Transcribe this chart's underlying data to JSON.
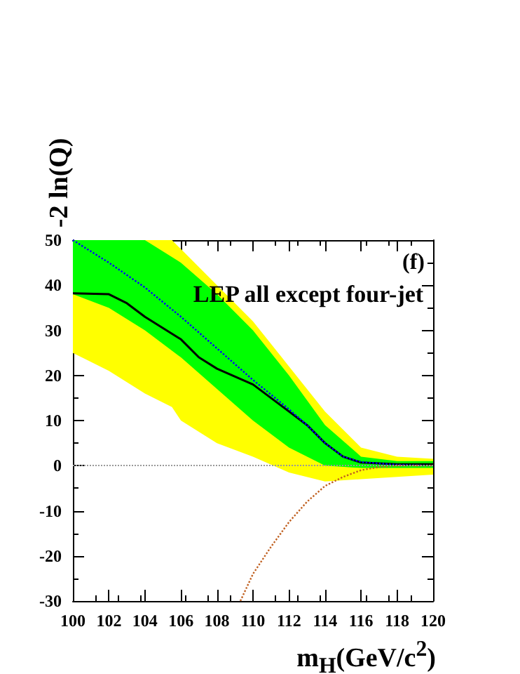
{
  "chart_data": {
    "type": "line",
    "xlabel": "m$_{H}$(GeV/c$^{2}$)",
    "ylabel": "-2 ln(Q)",
    "annotations": [
      "(f)",
      "LEP all except four-jet"
    ],
    "xlim": [
      100,
      120
    ],
    "xticks": [
      100,
      102,
      104,
      106,
      108,
      110,
      112,
      114,
      116,
      118,
      120
    ],
    "ylim": [
      -30,
      50
    ],
    "yticks": [
      -30,
      -20,
      -10,
      0,
      10,
      20,
      30,
      40,
      50
    ],
    "grid": false,
    "ref_lines": [
      {
        "axis": "y",
        "value": 0,
        "color": "#999999",
        "line_style": "dotted"
      }
    ],
    "series": [
      {
        "color": "#ffff00",
        "x": [
          100,
          102,
          104,
          105.5,
          106,
          108,
          110,
          112,
          114,
          116,
          118,
          120
        ],
        "values": [
          null,
          null,
          null,
          null,
          null,
          null,
          null,
          null,
          null,
          null,
          null,
          null
        ],
        "lower": [
          25,
          21,
          16,
          13,
          10,
          5,
          2,
          -1.5,
          -3.5,
          -3,
          -2.5,
          -2
        ],
        "upper": [
          50,
          50,
          50,
          50,
          48,
          40,
          32,
          22,
          12,
          4,
          2,
          1.5
        ]
      },
      {
        "color": "#00ff00",
        "x": [
          100,
          102,
          104,
          106,
          108,
          110,
          112,
          114,
          116,
          118,
          120
        ],
        "values": [
          null,
          null,
          null,
          null,
          null,
          null,
          null,
          null,
          null,
          null,
          null
        ],
        "lower": [
          38,
          35,
          30,
          24,
          17,
          10,
          4,
          0,
          -0.5,
          -0.5,
          -0.5
        ],
        "upper": [
          50,
          50,
          50,
          45,
          38,
          30,
          20,
          9,
          2,
          1,
          1
        ]
      },
      {
        "color": "#0000ff",
        "line_style": "dotted",
        "x": [
          100,
          102,
          104,
          106,
          108,
          110,
          112,
          113,
          114,
          115,
          116,
          118,
          120
        ],
        "values": [
          50,
          45,
          39.5,
          33,
          26,
          19,
          12.5,
          9,
          5,
          2,
          0.8,
          0.2,
          0
        ]
      },
      {
        "color": "#000000",
        "line_style": "solid",
        "x": [
          100,
          102,
          103,
          104,
          106,
          107,
          108,
          110,
          112,
          113,
          114,
          115,
          116,
          118,
          120
        ],
        "values": [
          38.2,
          38,
          36,
          33,
          28,
          24,
          21.5,
          18,
          12,
          9,
          5,
          2,
          0.7,
          0.3,
          0.3
        ]
      },
      {
        "color": "#c06020",
        "line_style": "dotted",
        "x": [
          109.3,
          110,
          111,
          112,
          113,
          114,
          115,
          116,
          117,
          118,
          120
        ],
        "values": [
          -30,
          -24,
          -18,
          -12.5,
          -8,
          -4.5,
          -2.5,
          -1,
          -0.3,
          0,
          0
        ]
      }
    ]
  }
}
